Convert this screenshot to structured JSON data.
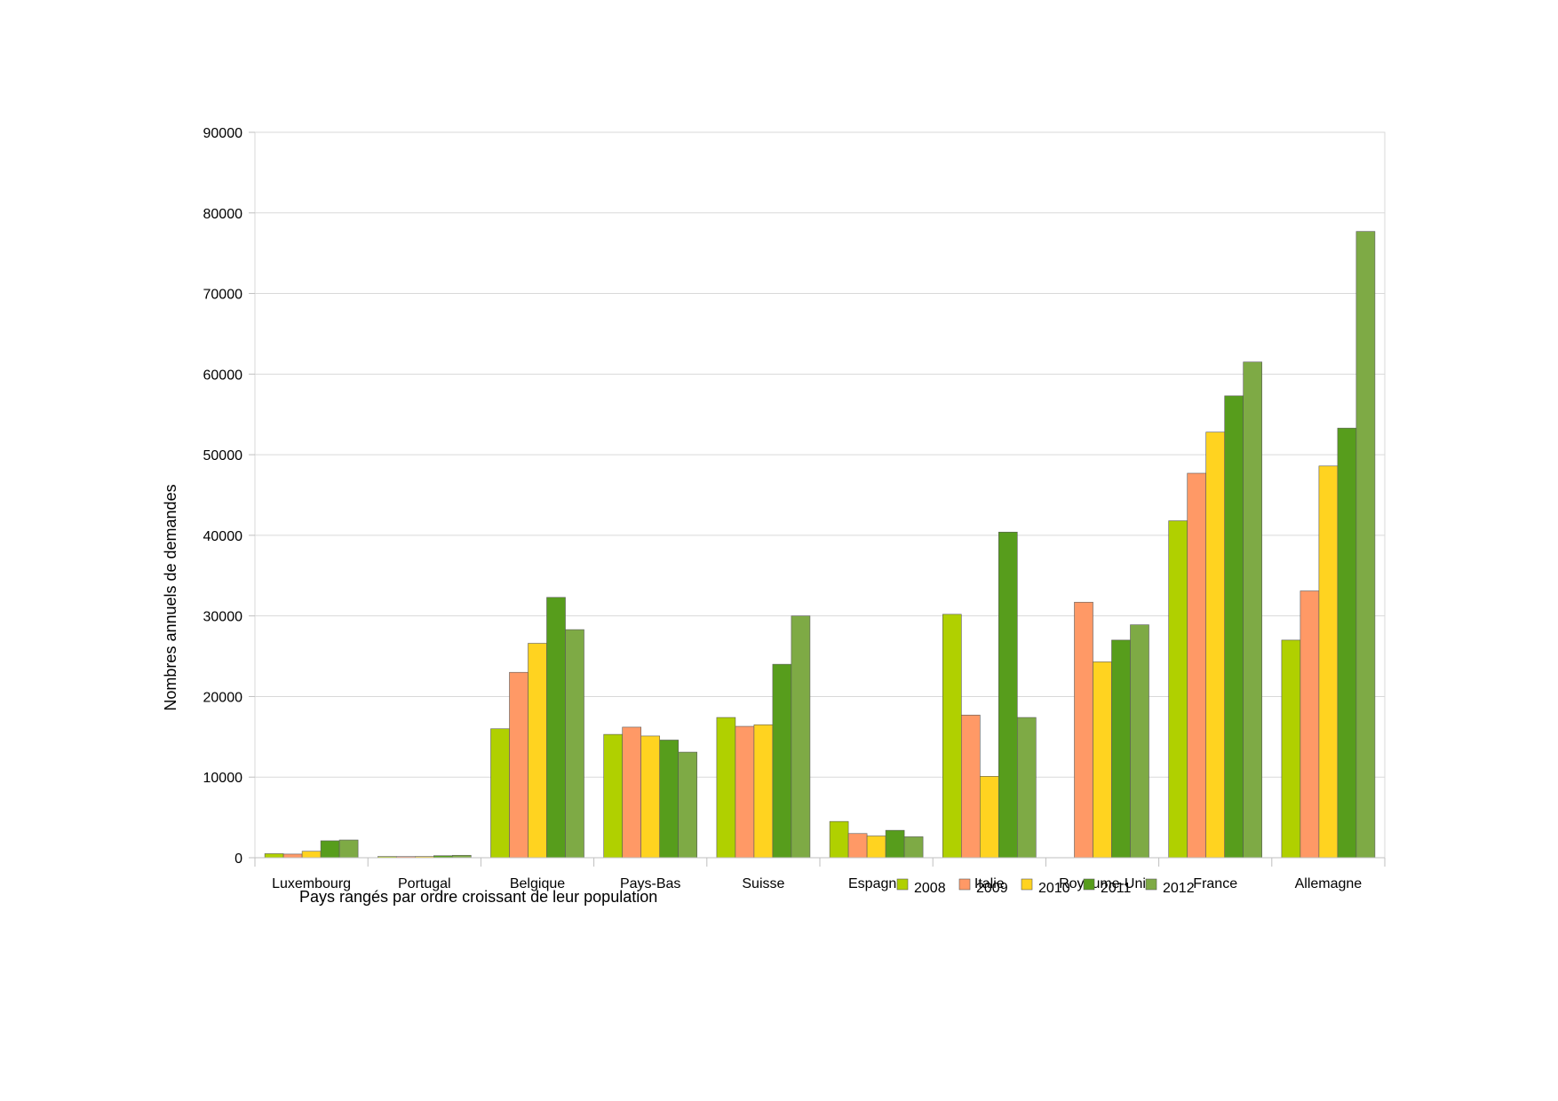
{
  "chart_data": {
    "type": "bar",
    "title": "",
    "xlabel": "Pays rangés par ordre croissant de leur population",
    "ylabel": "Nombres annuels de demandes",
    "ylim": [
      0,
      90000
    ],
    "yticks": [
      0,
      10000,
      20000,
      30000,
      40000,
      50000,
      60000,
      70000,
      80000,
      90000
    ],
    "grid": true,
    "legend_position": "bottom-center",
    "categories": [
      "Luxembourg",
      "Portugal",
      "Belgique",
      "Pays-Bas",
      "Suisse",
      "Espagne",
      "Italie",
      "Royaume-Uni",
      "France",
      "Allemagne"
    ],
    "series": [
      {
        "name": "2008",
        "color": "#b0d000",
        "values": [
          500,
          150,
          16000,
          15300,
          17400,
          4500,
          30200,
          0,
          41800,
          27000
        ]
      },
      {
        "name": "2009",
        "color": "#ff9966",
        "values": [
          450,
          140,
          23000,
          16200,
          16300,
          3000,
          17700,
          31700,
          47700,
          33100
        ]
      },
      {
        "name": "2010",
        "color": "#ffd320",
        "values": [
          800,
          150,
          26600,
          15100,
          16500,
          2700,
          10100,
          24300,
          52800,
          48600
        ]
      },
      {
        "name": "2011",
        "color": "#579d1c",
        "values": [
          2100,
          250,
          32300,
          14600,
          24000,
          3400,
          40400,
          27000,
          57300,
          53300
        ]
      },
      {
        "name": "2012",
        "color": "#7eaa45",
        "values": [
          2200,
          300,
          28300,
          13100,
          30000,
          2600,
          17400,
          28900,
          61500,
          77700
        ]
      }
    ]
  }
}
